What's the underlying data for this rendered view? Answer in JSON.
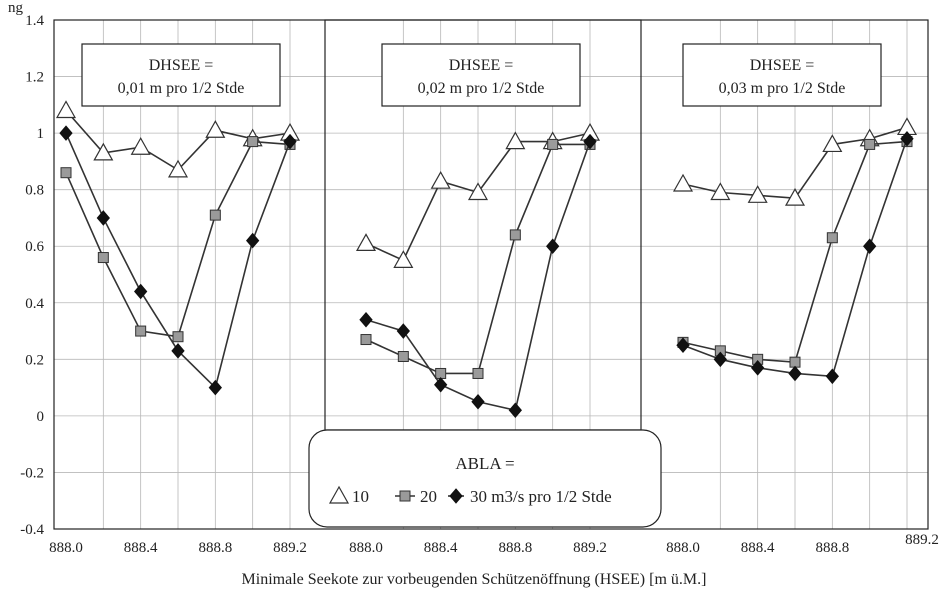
{
  "chart_data": {
    "type": "line",
    "title": "",
    "top_label": "ng",
    "xlabel": "Minimale Seekote zur vorbeugenden Schützenöffnung (HSEE)  [m ü.M.]",
    "ylabel": "",
    "ylim": [
      -0.4,
      1.4
    ],
    "yticks": [
      "-0.4",
      "-0.2",
      "0",
      "0.2",
      "0.4",
      "0.6",
      "0.8",
      "1",
      "1.2",
      "1.4"
    ],
    "xticks": [
      "888.0",
      "888.4",
      "888.8",
      "889.2",
      "888.0",
      "888.4",
      "888.8",
      "889.2",
      "888.0",
      "888.4",
      "888.8",
      "889.2"
    ],
    "grid": true,
    "x": [
      888.0,
      888.2,
      888.4,
      888.6,
      888.8,
      889.0,
      889.2
    ],
    "legend": {
      "title": "ABLA =",
      "items": [
        {
          "label": "10",
          "marker": "triangle"
        },
        {
          "label": "20",
          "marker": "square"
        },
        {
          "label": "30 m3/s pro 1/2 Stde",
          "marker": "diamond"
        }
      ]
    },
    "panels": [
      {
        "label_line1": "DHSEE =",
        "label_line2": "0,01 m pro 1/2 Stde",
        "series": [
          {
            "name": "10",
            "values": [
              1.08,
              0.93,
              0.95,
              0.87,
              1.01,
              0.98,
              1.0
            ]
          },
          {
            "name": "20",
            "values": [
              0.86,
              0.56,
              0.3,
              0.28,
              0.71,
              0.97,
              0.96
            ]
          },
          {
            "name": "30 m3/s pro 1/2 Stde",
            "values": [
              1.0,
              0.7,
              0.44,
              0.23,
              0.1,
              0.62,
              0.97
            ]
          }
        ]
      },
      {
        "label_line1": "DHSEE =",
        "label_line2": "0,02 m pro 1/2 Stde",
        "series": [
          {
            "name": "10",
            "values": [
              0.61,
              0.55,
              0.83,
              0.79,
              0.97,
              0.97,
              1.0
            ]
          },
          {
            "name": "20",
            "values": [
              0.27,
              0.21,
              0.15,
              0.15,
              0.64,
              0.96,
              0.96
            ]
          },
          {
            "name": "30 m3/s pro 1/2 Stde",
            "values": [
              0.34,
              0.3,
              0.11,
              0.05,
              0.02,
              0.6,
              0.97
            ]
          }
        ]
      },
      {
        "label_line1": "DHSEE =",
        "label_line2": "0,03 m pro 1/2 Stde",
        "series": [
          {
            "name": "10",
            "values": [
              0.82,
              0.79,
              0.78,
              0.77,
              0.96,
              0.98,
              1.02
            ]
          },
          {
            "name": "20",
            "values": [
              0.26,
              0.23,
              0.2,
              0.19,
              0.63,
              0.96,
              0.97
            ]
          },
          {
            "name": "30 m3/s pro 1/2 Stde",
            "values": [
              0.25,
              0.2,
              0.17,
              0.15,
              0.14,
              0.6,
              0.98
            ]
          }
        ]
      }
    ]
  }
}
